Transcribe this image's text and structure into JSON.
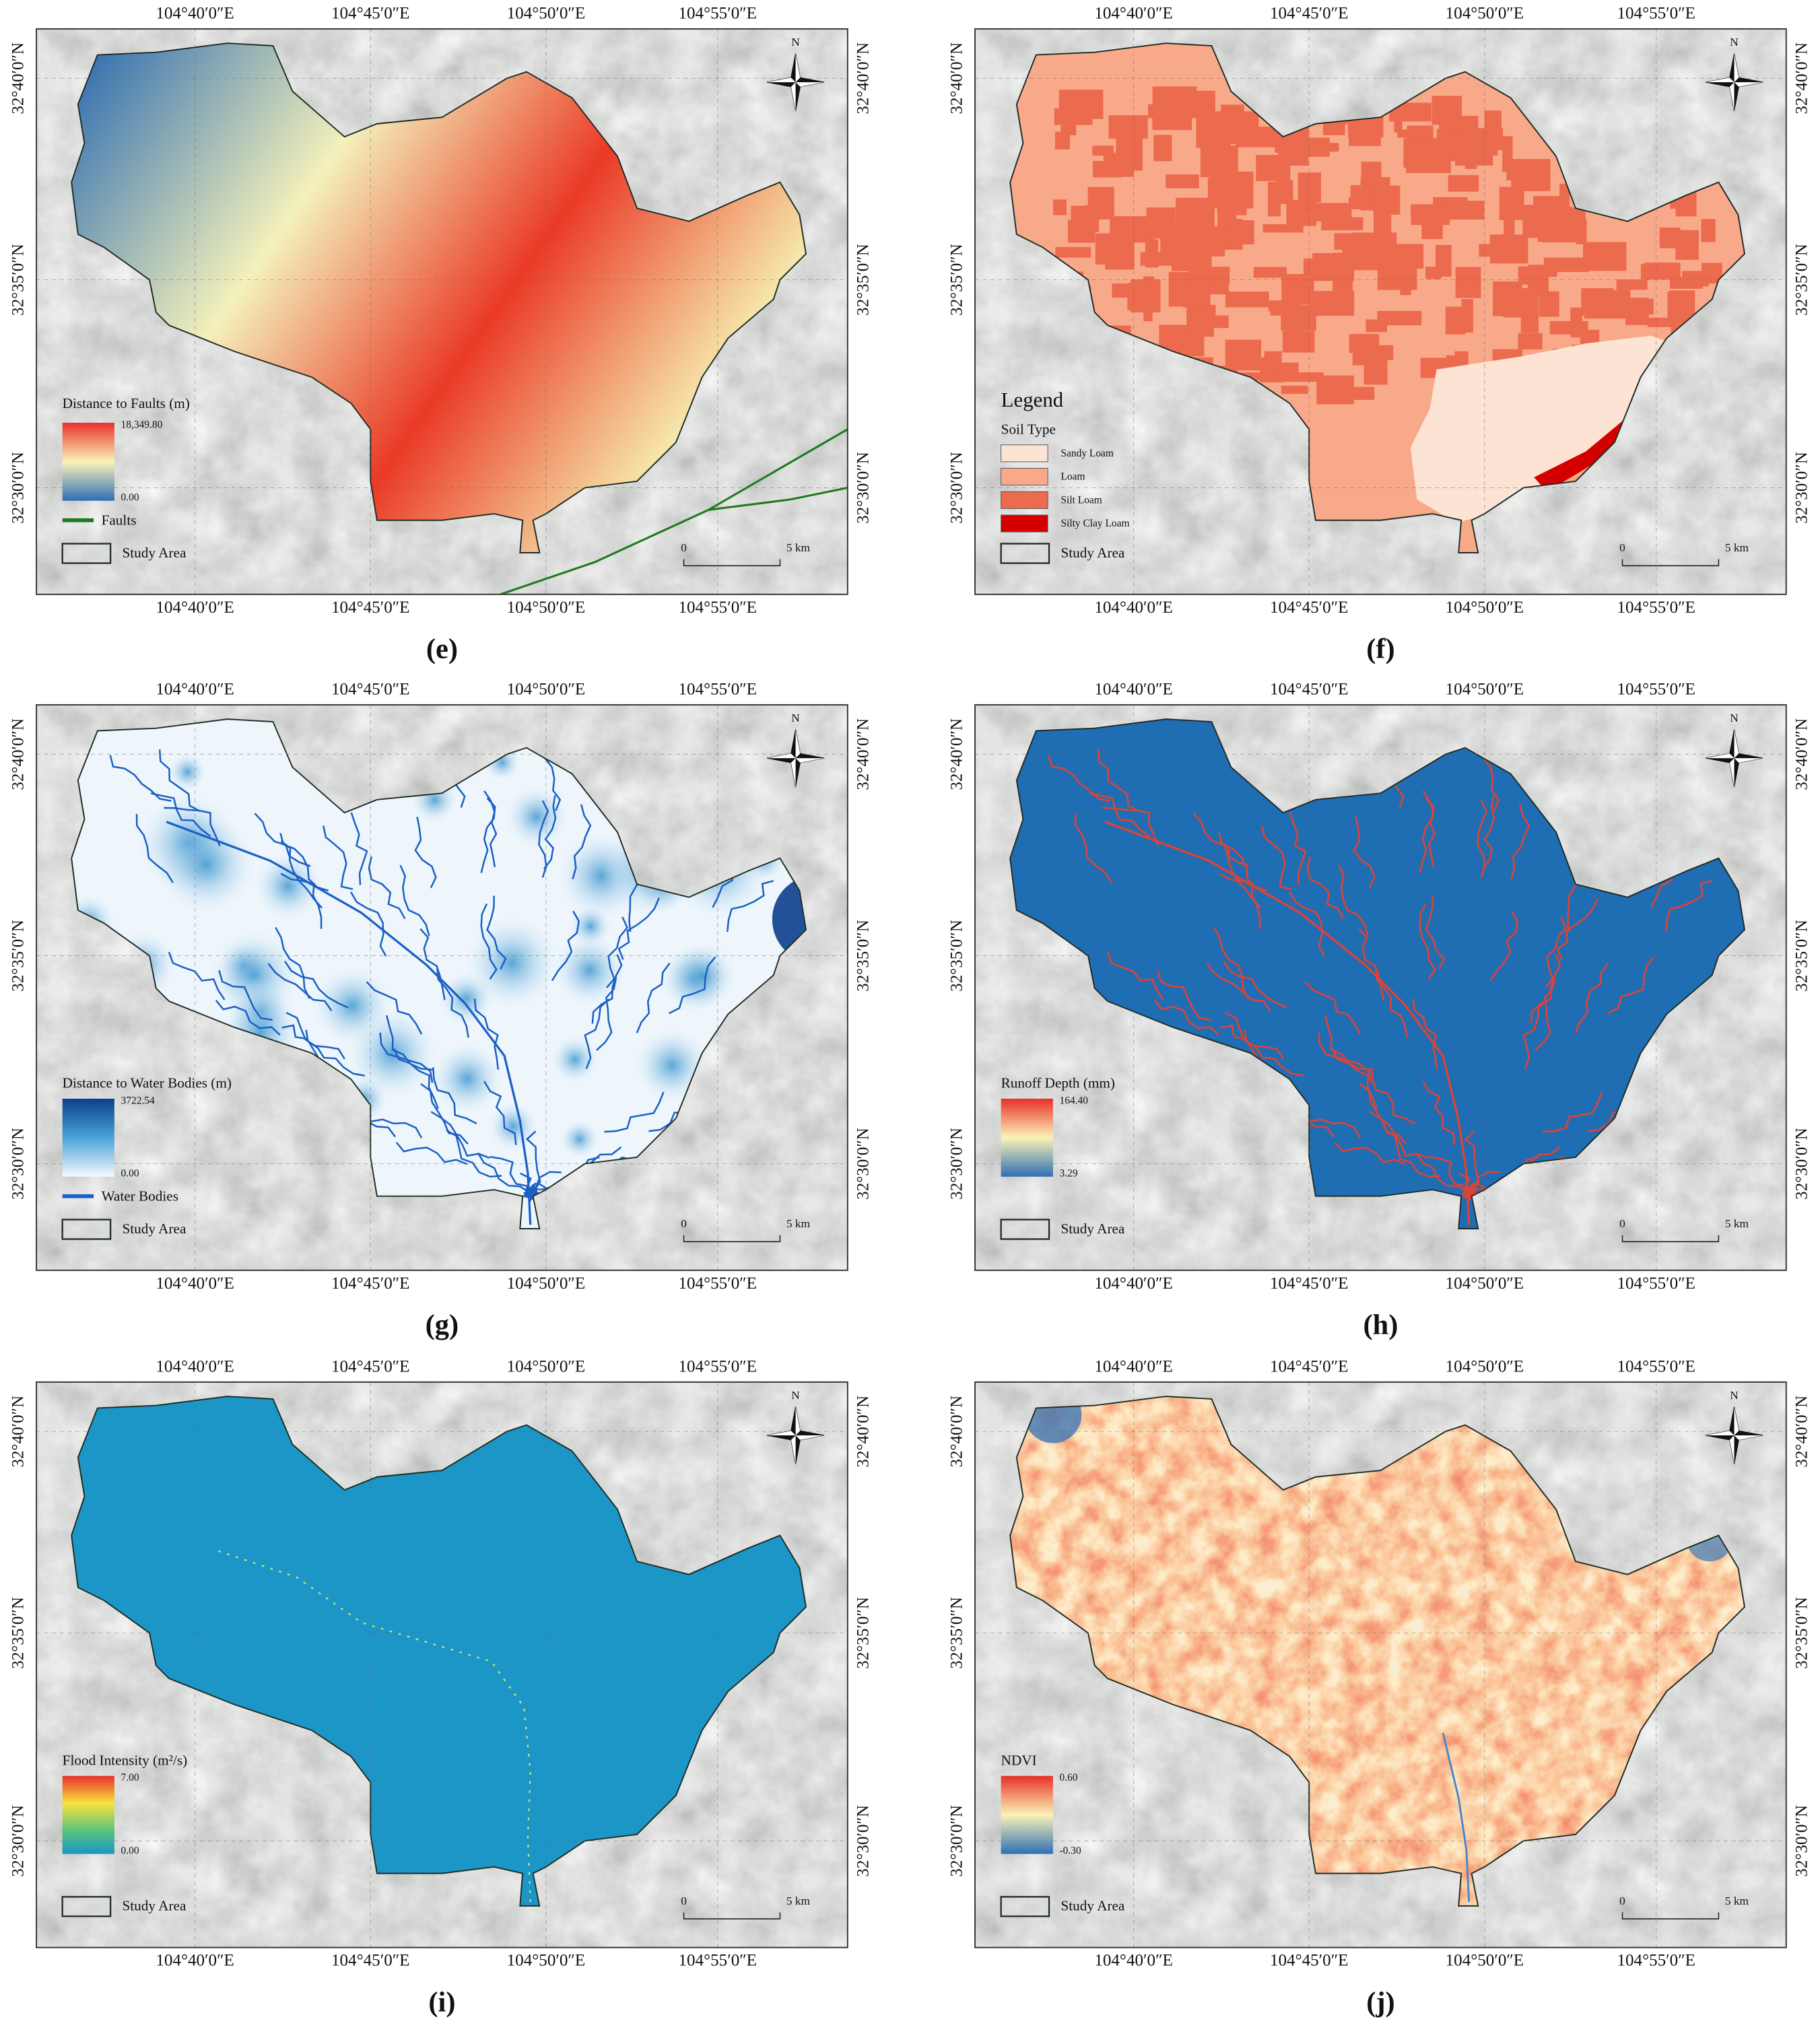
{
  "lon_labels": [
    "104°40′0″E",
    "104°45′0″E",
    "104°50′0″E",
    "104°55′0″E"
  ],
  "lat_labels": [
    "32°40′0″N",
    "32°35′0″N",
    "32°30′0″N"
  ],
  "north": "N",
  "study_area": "Study Area",
  "scale_bar": {
    "start": "0",
    "end": "5 km"
  },
  "panels": [
    {
      "label": "(e)",
      "legend": {
        "title": "Distance to Faults (m)",
        "max": "18,349.80",
        "min": "0.00",
        "line": "Faults"
      }
    },
    {
      "label": "(f)",
      "legend": {
        "heading": "Legend",
        "title": "Soil Type",
        "classes": [
          "Sandy Loam",
          "Loam",
          "Silt Loam",
          "Silty Clay Loam"
        ]
      }
    },
    {
      "label": "(g)",
      "legend": {
        "title": "Distance to Water Bodies (m)",
        "max": "3722.54",
        "min": "0.00",
        "line": "Water Bodies"
      }
    },
    {
      "label": "(h)",
      "legend": {
        "title": "Runoff Depth (mm)",
        "max": "164.40",
        "min": "3.29"
      }
    },
    {
      "label": "(i)",
      "legend": {
        "title": "Flood Intensity (m²/s)",
        "max": "7.00",
        "min": "0.00"
      }
    },
    {
      "label": "(j)",
      "legend": {
        "title": "NDVI",
        "max": "0.60",
        "min": "-0.30"
      }
    }
  ]
}
